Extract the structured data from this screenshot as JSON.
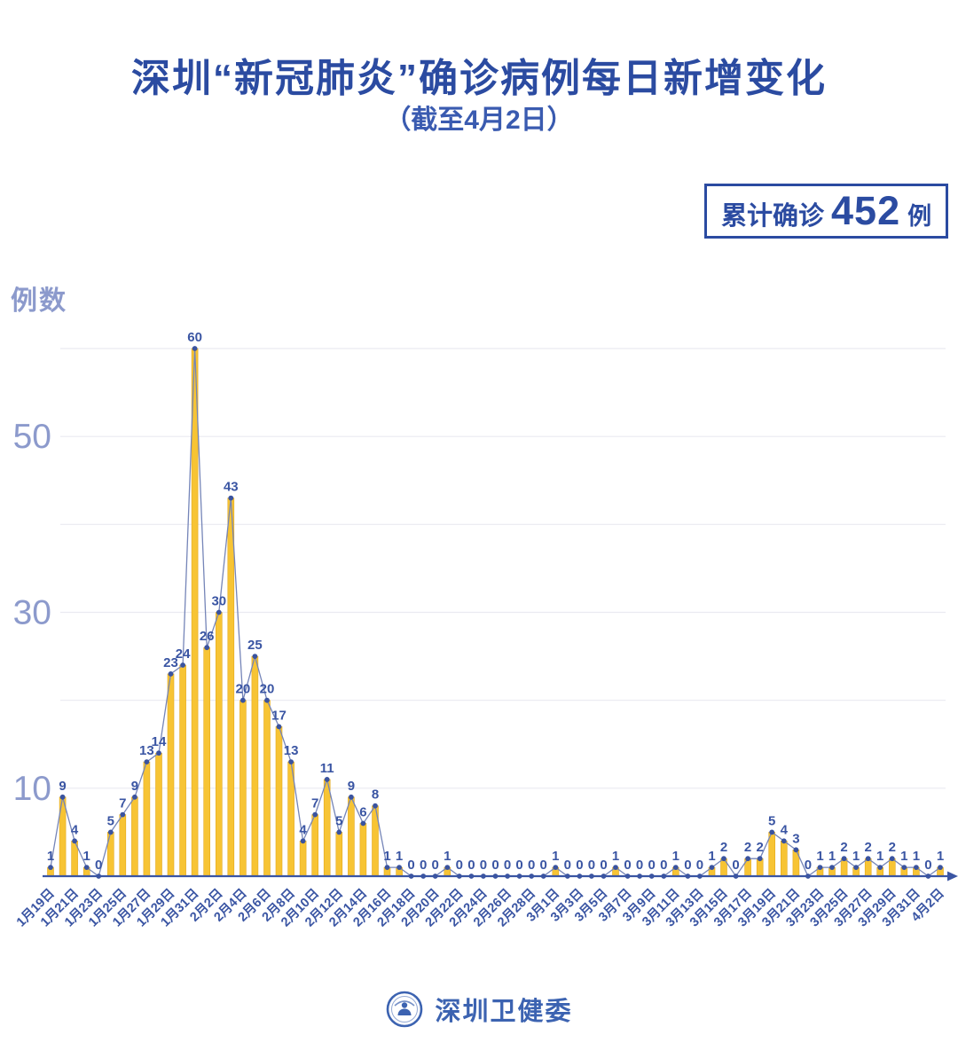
{
  "badge": {
    "prefix": "累计确诊",
    "value": "452",
    "suffix": "例"
  },
  "footer": {
    "org": "深圳卫健委",
    "logo_icon": "shenzhen-health-commission-emblem"
  },
  "colors": {
    "accent_blue": "#2B4BA1",
    "axis_blue": "#3A55A3",
    "tick_value_blue": "#8C9ACC",
    "bar_yellow": "#F7C434",
    "bar_edge": "#E3A91E",
    "line_blue": "#7585B8",
    "point_navy": "#3A539F",
    "grid_gray": "#EAEAF1",
    "footer_blue": "#3C63B1"
  },
  "chart_data": {
    "type": "bar",
    "line_overlay": true,
    "title": "深圳“新冠肺炎”确诊病例每日新增变化",
    "subtitle": "（截至4月2日）",
    "xlabel": "",
    "ylabel": "例数",
    "ylim": [
      0,
      62
    ],
    "grid": "on",
    "legend": "none",
    "y_ticks_labeled": [
      10,
      30,
      50
    ],
    "gridlines": [
      10,
      20,
      30,
      40,
      50,
      60
    ],
    "x_tick_every": 2,
    "categories": [
      "1月19日",
      "1月20日",
      "1月21日",
      "1月22日",
      "1月23日",
      "1月24日",
      "1月25日",
      "1月26日",
      "1月27日",
      "1月28日",
      "1月29日",
      "1月30日",
      "1月31日",
      "2月1日",
      "2月2日",
      "2月3日",
      "2月4日",
      "2月5日",
      "2月6日",
      "2月7日",
      "2月8日",
      "2月9日",
      "2月10日",
      "2月11日",
      "2月12日",
      "2月13日",
      "2月14日",
      "2月15日",
      "2月16日",
      "2月17日",
      "2月18日",
      "2月19日",
      "2月20日",
      "2月21日",
      "2月22日",
      "2月23日",
      "2月24日",
      "2月25日",
      "2月26日",
      "2月27日",
      "2月28日",
      "2月29日",
      "3月1日",
      "3月2日",
      "3月3日",
      "3月4日",
      "3月5日",
      "3月6日",
      "3月7日",
      "3月8日",
      "3月9日",
      "3月10日",
      "3月11日",
      "3月12日",
      "3月13日",
      "3月14日",
      "3月15日",
      "3月16日",
      "3月17日",
      "3月18日",
      "3月19日",
      "3月20日",
      "3月21日",
      "3月22日",
      "3月23日",
      "3月24日",
      "3月25日",
      "3月26日",
      "3月27日",
      "3月28日",
      "3月29日",
      "3月30日",
      "3月31日",
      "4月1日",
      "4月2日"
    ],
    "values": [
      1,
      9,
      4,
      1,
      0,
      5,
      7,
      9,
      13,
      14,
      23,
      24,
      60,
      26,
      30,
      43,
      20,
      25,
      20,
      17,
      13,
      4,
      7,
      11,
      5,
      9,
      6,
      8,
      1,
      1,
      0,
      0,
      0,
      1,
      0,
      0,
      0,
      0,
      0,
      0,
      0,
      0,
      1,
      0,
      0,
      0,
      0,
      1,
      0,
      0,
      0,
      0,
      1,
      0,
      0,
      1,
      2,
      0,
      2,
      2,
      5,
      4,
      3,
      0,
      1,
      1,
      2,
      1,
      2,
      1,
      2,
      1,
      1,
      0,
      1
    ],
    "cumulative_total": 452
  }
}
